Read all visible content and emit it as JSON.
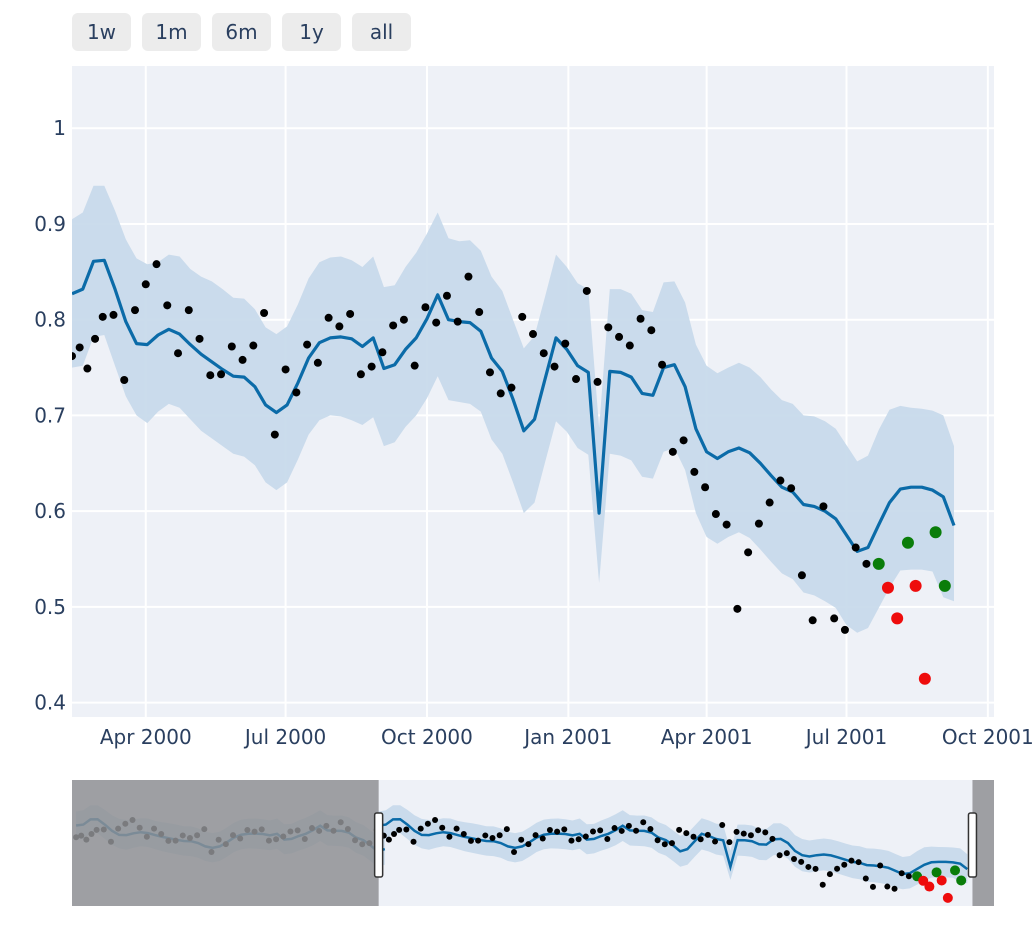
{
  "range_selector": {
    "buttons": [
      {
        "label": "1w"
      },
      {
        "label": "1m"
      },
      {
        "label": "6m"
      },
      {
        "label": "1y"
      },
      {
        "label": "all"
      }
    ]
  },
  "colors": {
    "plot_bg": "#eef1f7",
    "grid": "#ffffff",
    "band": "#c5d8ea",
    "forecast_line": "#0b6ba8",
    "actual_point": "#000000",
    "above_point": "#0a7d0a",
    "below_point": "#ee0c0c",
    "slider_mask": "#8f9094"
  },
  "chart_data": {
    "type": "line",
    "title": "",
    "xlabel": "",
    "ylabel": "",
    "x_range": [
      "2000-02-13",
      "2001-10-05"
    ],
    "ylim": [
      0.385,
      1.065
    ],
    "grid": true,
    "x_ticks": [
      {
        "date": "2000-04-01",
        "label": "Apr 2000"
      },
      {
        "date": "2000-07-01",
        "label": "Jul 2000"
      },
      {
        "date": "2000-10-01",
        "label": "Oct 2000"
      },
      {
        "date": "2001-01-01",
        "label": "Jan 2001"
      },
      {
        "date": "2001-04-01",
        "label": "Apr 2001"
      },
      {
        "date": "2001-07-01",
        "label": "Jul 2001"
      },
      {
        "date": "2001-10-01",
        "label": "Oct 2001"
      }
    ],
    "y_ticks": [
      {
        "value": 0.4,
        "label": "0.4"
      },
      {
        "value": 0.5,
        "label": "0.5"
      },
      {
        "value": 0.6,
        "label": "0.6"
      },
      {
        "value": 0.7,
        "label": "0.7"
      },
      {
        "value": 0.8,
        "label": "0.8"
      },
      {
        "value": 0.9,
        "label": "0.9"
      },
      {
        "value": 1.0,
        "label": "1"
      }
    ],
    "forecast": {
      "x": [
        "2000-02-13",
        "2000-02-20",
        "2000-02-27",
        "2000-03-05",
        "2000-03-12",
        "2000-03-19",
        "2000-03-26",
        "2000-04-02",
        "2000-04-09",
        "2000-04-16",
        "2000-04-23",
        "2000-04-30",
        "2000-05-07",
        "2000-05-14",
        "2000-05-21",
        "2000-05-28",
        "2000-06-04",
        "2000-06-11",
        "2000-06-18",
        "2000-06-25",
        "2000-07-02",
        "2000-07-09",
        "2000-07-16",
        "2000-07-23",
        "2000-07-30",
        "2000-08-06",
        "2000-08-13",
        "2000-08-20",
        "2000-08-27",
        "2000-09-03",
        "2000-09-10",
        "2000-09-17",
        "2000-09-24",
        "2000-10-01",
        "2000-10-08",
        "2000-10-15",
        "2000-10-22",
        "2000-10-29",
        "2000-11-05",
        "2000-11-12",
        "2000-11-19",
        "2000-11-26",
        "2000-12-03",
        "2000-12-10",
        "2000-12-17",
        "2000-12-24",
        "2000-12-31",
        "2001-01-07",
        "2001-01-14",
        "2001-01-21",
        "2001-01-28",
        "2001-02-04",
        "2001-02-11",
        "2001-02-18",
        "2001-02-25",
        "2001-03-04",
        "2001-03-11",
        "2001-03-18",
        "2001-03-25",
        "2001-04-01",
        "2001-04-08",
        "2001-04-15",
        "2001-04-22",
        "2001-04-29",
        "2001-05-06",
        "2001-05-13",
        "2001-05-20",
        "2001-05-27",
        "2001-06-03",
        "2001-06-10",
        "2001-06-17",
        "2001-06-24",
        "2001-07-01",
        "2001-07-08",
        "2001-07-15",
        "2001-07-22",
        "2001-07-29",
        "2001-08-05",
        "2001-08-12",
        "2001-08-19",
        "2001-08-26",
        "2001-09-02",
        "2001-09-09"
      ],
      "y": [
        0.827,
        0.832,
        0.861,
        0.862,
        0.832,
        0.798,
        0.775,
        0.774,
        0.784,
        0.79,
        0.785,
        0.774,
        0.764,
        0.756,
        0.748,
        0.741,
        0.74,
        0.73,
        0.711,
        0.703,
        0.711,
        0.734,
        0.76,
        0.776,
        0.781,
        0.782,
        0.78,
        0.772,
        0.781,
        0.749,
        0.753,
        0.769,
        0.781,
        0.801,
        0.826,
        0.8,
        0.798,
        0.797,
        0.788,
        0.76,
        0.746,
        0.717,
        0.684,
        0.696,
        0.739,
        0.781,
        0.769,
        0.752,
        0.745,
        0.598,
        0.746,
        0.745,
        0.74,
        0.723,
        0.721,
        0.75,
        0.753,
        0.73,
        0.686,
        0.662,
        0.655,
        0.662,
        0.666,
        0.661,
        0.65,
        0.637,
        0.625,
        0.62,
        0.607,
        0.605,
        0.6,
        0.592,
        0.575,
        0.558,
        0.562,
        0.586,
        0.609,
        0.623,
        0.625,
        0.625,
        0.622,
        0.615,
        0.585
      ],
      "upper": [
        0.905,
        0.912,
        0.94,
        0.94,
        0.914,
        0.884,
        0.864,
        0.858,
        0.86,
        0.868,
        0.866,
        0.853,
        0.845,
        0.84,
        0.832,
        0.823,
        0.822,
        0.811,
        0.792,
        0.785,
        0.793,
        0.816,
        0.843,
        0.86,
        0.865,
        0.866,
        0.862,
        0.855,
        0.866,
        0.834,
        0.836,
        0.855,
        0.87,
        0.89,
        0.912,
        0.885,
        0.882,
        0.883,
        0.872,
        0.845,
        0.83,
        0.8,
        0.77,
        0.783,
        0.825,
        0.868,
        0.855,
        0.838,
        0.832,
        0.687,
        0.832,
        0.832,
        0.827,
        0.81,
        0.808,
        0.839,
        0.84,
        0.818,
        0.774,
        0.752,
        0.744,
        0.75,
        0.755,
        0.75,
        0.74,
        0.727,
        0.716,
        0.712,
        0.7,
        0.699,
        0.694,
        0.686,
        0.669,
        0.652,
        0.658,
        0.685,
        0.706,
        0.71,
        0.708,
        0.707,
        0.705,
        0.7,
        0.668
      ],
      "lower": [
        0.75,
        0.752,
        0.782,
        0.784,
        0.752,
        0.72,
        0.7,
        0.692,
        0.704,
        0.712,
        0.708,
        0.696,
        0.684,
        0.676,
        0.668,
        0.66,
        0.657,
        0.648,
        0.63,
        0.622,
        0.63,
        0.654,
        0.68,
        0.695,
        0.7,
        0.699,
        0.695,
        0.69,
        0.698,
        0.668,
        0.672,
        0.688,
        0.7,
        0.718,
        0.741,
        0.716,
        0.714,
        0.712,
        0.704,
        0.675,
        0.66,
        0.63,
        0.598,
        0.609,
        0.652,
        0.694,
        0.683,
        0.666,
        0.659,
        0.525,
        0.66,
        0.658,
        0.653,
        0.636,
        0.634,
        0.662,
        0.666,
        0.643,
        0.598,
        0.573,
        0.566,
        0.573,
        0.578,
        0.572,
        0.56,
        0.547,
        0.535,
        0.529,
        0.515,
        0.512,
        0.506,
        0.499,
        0.481,
        0.473,
        0.478,
        0.499,
        0.52,
        0.538,
        0.539,
        0.539,
        0.537,
        0.51,
        0.506
      ]
    },
    "actual": {
      "x": [
        "2000-02-13",
        "2000-02-18",
        "2000-02-23",
        "2000-02-28",
        "2000-03-04",
        "2000-03-11",
        "2000-03-18",
        "2000-03-25",
        "2000-04-01",
        "2000-04-08",
        "2000-04-15",
        "2000-04-22",
        "2000-04-29",
        "2000-05-06",
        "2000-05-13",
        "2000-05-20",
        "2000-05-27",
        "2000-06-03",
        "2000-06-10",
        "2000-06-17",
        "2000-06-24",
        "2000-07-01",
        "2000-07-08",
        "2000-07-15",
        "2000-07-22",
        "2000-07-29",
        "2000-08-05",
        "2000-08-12",
        "2000-08-19",
        "2000-08-26",
        "2000-09-02",
        "2000-09-09",
        "2000-09-16",
        "2000-09-23",
        "2000-09-30",
        "2000-10-07",
        "2000-10-14",
        "2000-10-21",
        "2000-10-28",
        "2000-11-04",
        "2000-11-11",
        "2000-11-18",
        "2000-11-25",
        "2000-12-02",
        "2000-12-09",
        "2000-12-16",
        "2000-12-23",
        "2000-12-30",
        "2001-01-06",
        "2001-01-13",
        "2001-01-20",
        "2001-01-27",
        "2001-02-03",
        "2001-02-10",
        "2001-02-17",
        "2001-02-24",
        "2001-03-03",
        "2001-03-10",
        "2001-03-17",
        "2001-03-24",
        "2001-03-31",
        "2001-04-07",
        "2001-04-14",
        "2001-04-21",
        "2001-04-28",
        "2001-05-05",
        "2001-05-12",
        "2001-05-19",
        "2001-05-26",
        "2001-06-02",
        "2001-06-09",
        "2001-06-16",
        "2001-06-23",
        "2001-06-30",
        "2001-07-07",
        "2001-07-14"
      ],
      "y": [
        0.762,
        0.771,
        0.749,
        0.78,
        0.803,
        0.805,
        0.737,
        0.81,
        0.837,
        0.858,
        0.815,
        0.765,
        0.81,
        0.78,
        0.742,
        0.743,
        0.772,
        0.758,
        0.773,
        0.807,
        0.68,
        0.748,
        0.724,
        0.774,
        0.755,
        0.802,
        0.793,
        0.806,
        0.743,
        0.751,
        0.766,
        0.794,
        0.8,
        0.752,
        0.813,
        0.797,
        0.825,
        0.798,
        0.845,
        0.808,
        0.745,
        0.723,
        0.729,
        0.803,
        0.785,
        0.765,
        0.751,
        0.775,
        0.738,
        0.83,
        0.735,
        0.792,
        0.782,
        0.773,
        0.801,
        0.789,
        0.753,
        0.662,
        0.674,
        0.641,
        0.625,
        0.597,
        0.586,
        0.498,
        0.557,
        0.587,
        0.609,
        0.632,
        0.624,
        0.533,
        0.486,
        0.605,
        0.488,
        0.476,
        0.562,
        0.545
      ]
    },
    "above_forecast": {
      "x": [
        "2001-07-22",
        "2001-08-10",
        "2001-08-28",
        "2001-09-03"
      ],
      "y": [
        0.545,
        0.567,
        0.578,
        0.522
      ]
    },
    "below_forecast": {
      "x": [
        "2001-07-28",
        "2001-08-03",
        "2001-08-15",
        "2001-08-21"
      ],
      "y": [
        0.52,
        0.488,
        0.522,
        0.425
      ]
    },
    "range_slider": {
      "x_range": [
        "1999-04-20",
        "2001-10-05"
      ],
      "y_range": [
        0.38,
        1.08
      ],
      "visible_window": [
        "2000-02-13",
        "2001-09-14"
      ]
    }
  }
}
